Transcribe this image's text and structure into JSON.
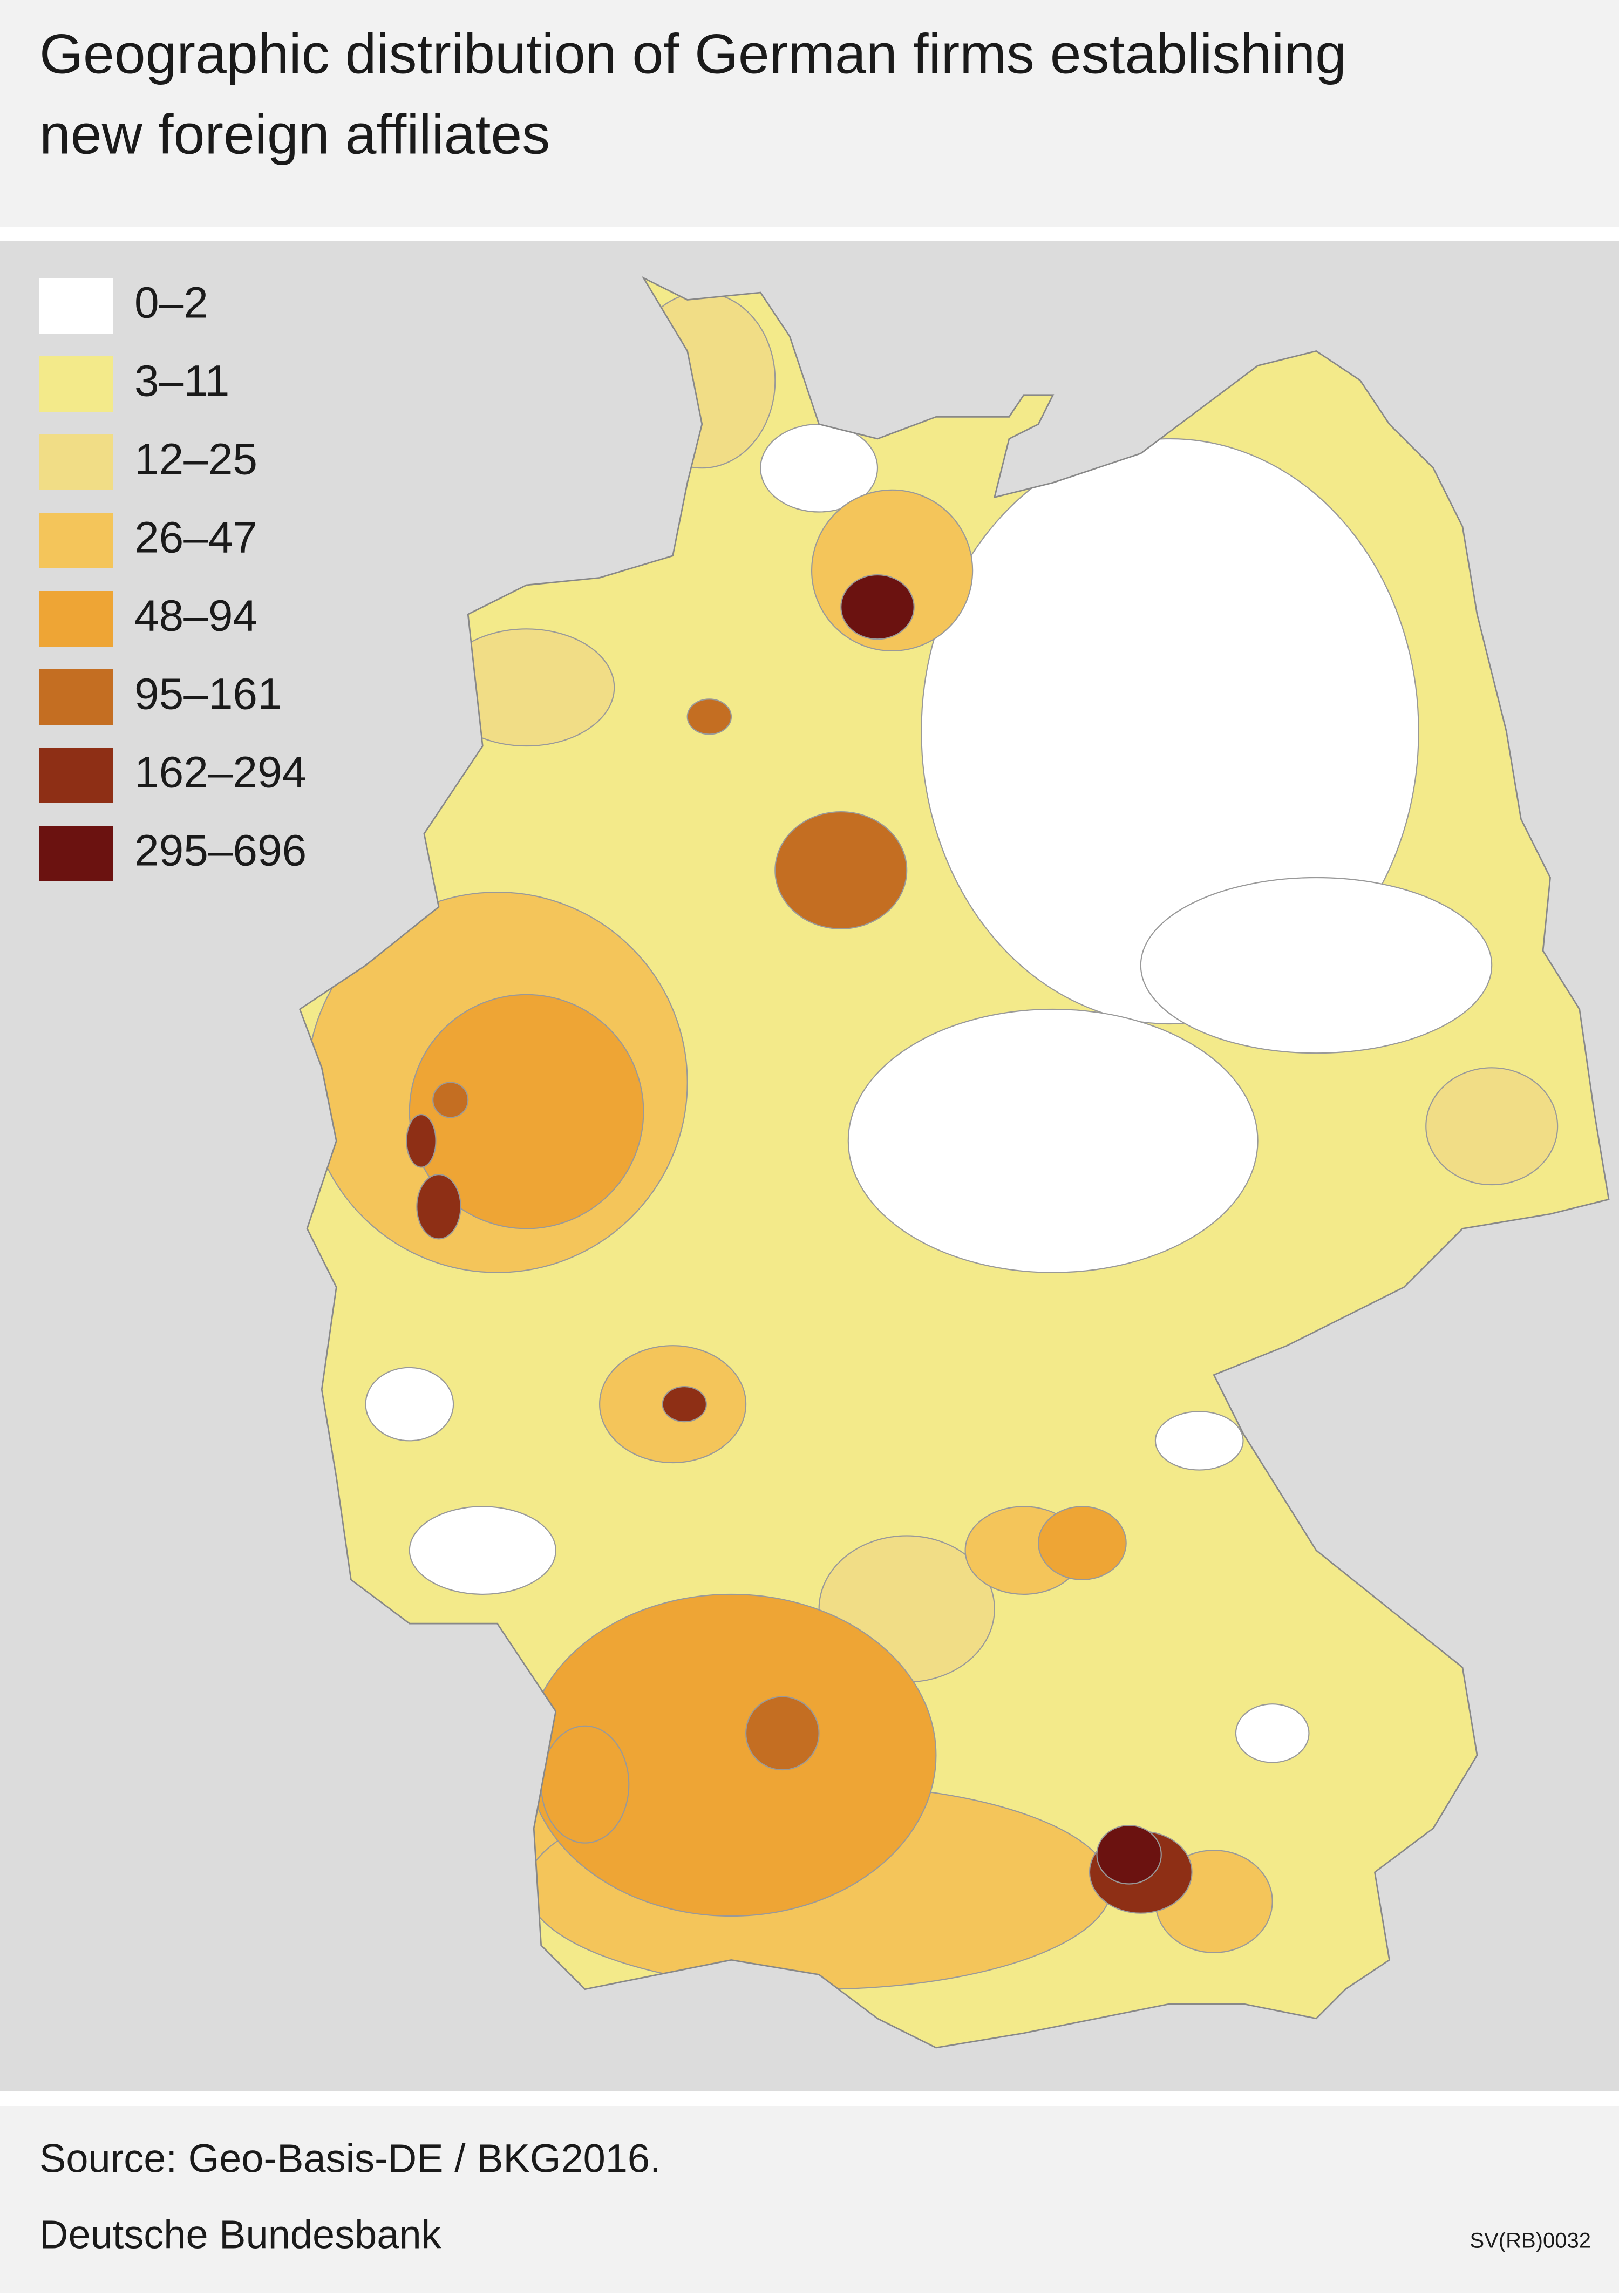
{
  "title": [
    "Geographic distribution of German firms establishing",
    "new foreign affiliates"
  ],
  "legend": [
    {
      "label": "0–2",
      "color": "#ffffff"
    },
    {
      "label": "3–11",
      "color": "#f3ea8a"
    },
    {
      "label": "12–25",
      "color": "#f1dd86"
    },
    {
      "label": "26–47",
      "color": "#f4c55a"
    },
    {
      "label": "48–94",
      "color": "#eea535"
    },
    {
      "label": "95–161",
      "color": "#c46e22"
    },
    {
      "label": "162–294",
      "color": "#8e2f15"
    },
    {
      "label": "295–696",
      "color": "#6b1210"
    }
  ],
  "footer": {
    "source": "Source: Geo-Basis-DE / BKG2016.",
    "publisher": "Deutsche Bundesbank",
    "code": "SV(RB)0032"
  }
}
